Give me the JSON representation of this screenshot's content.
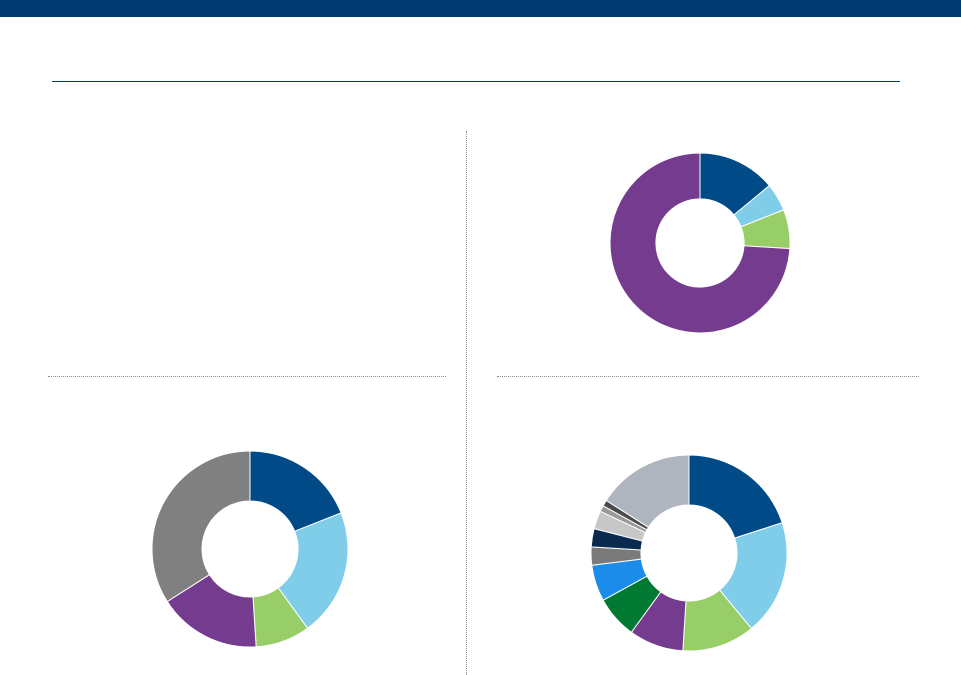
{
  "theme": {
    "top_bar_color": "#003a70",
    "rule_color": "#003a70"
  },
  "chart_data": [
    {
      "type": "pie",
      "donut": true,
      "position": "top-right",
      "values": [
        14,
        5,
        7,
        74
      ],
      "colors": [
        "#004b87",
        "#7fcde9",
        "#97ce68",
        "#753b8f"
      ]
    },
    {
      "type": "pie",
      "donut": true,
      "position": "bottom-left",
      "values": [
        19,
        21,
        9,
        17,
        34
      ],
      "colors": [
        "#004b87",
        "#7fcde9",
        "#97ce68",
        "#753b8f",
        "#808080"
      ]
    },
    {
      "type": "pie",
      "donut": true,
      "position": "bottom-right",
      "values": [
        20,
        19,
        12,
        9,
        7,
        6,
        3,
        3,
        3,
        1,
        1,
        16
      ],
      "colors": [
        "#004b87",
        "#7fcde9",
        "#97ce68",
        "#753b8f",
        "#007a33",
        "#1c8ceb",
        "#7a7a7a",
        "#0a2b4f",
        "#c7c7c7",
        "#9a9a9a",
        "#4a4a4a",
        "#aeb5bf"
      ]
    }
  ]
}
